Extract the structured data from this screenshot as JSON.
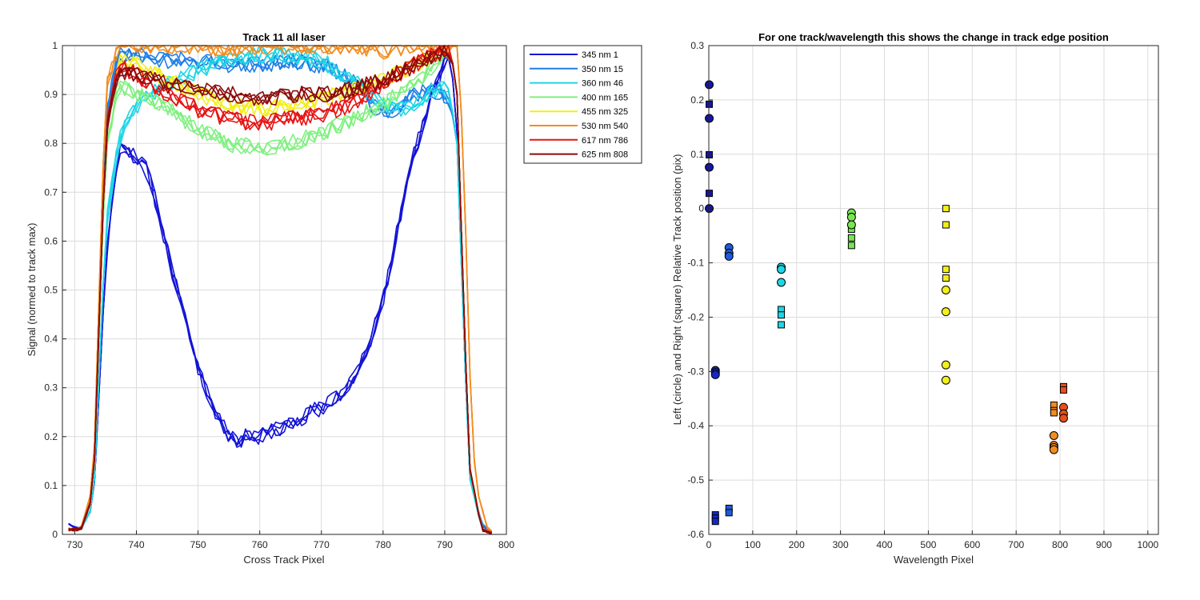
{
  "chart_data": [
    {
      "type": "line",
      "title": "Track 11  all laser",
      "xlabel": "Cross Track Pixel",
      "ylabel": "Signal (normed to track max)",
      "xlim": [
        728,
        800
      ],
      "ylim": [
        0,
        1
      ],
      "xticks": [
        "730",
        "740",
        "750",
        "760",
        "770",
        "780",
        "790",
        "800"
      ],
      "yticks": [
        "0",
        "0.1",
        "0.2",
        "0.3",
        "0.4",
        "0.5",
        "0.6",
        "0.7",
        "0.8",
        "0.9",
        "1"
      ],
      "grid": true,
      "legend_position": "outside-right",
      "series": [
        {
          "name": "345 nm 1",
          "color": "#1414d6",
          "profile": [
            [
              729,
              0.02
            ],
            [
              731,
              0.01
            ],
            [
              733,
              0.06
            ],
            [
              735,
              0.55
            ],
            [
              737,
              0.78
            ],
            [
              738,
              0.8
            ],
            [
              740,
              0.77
            ],
            [
              742,
              0.74
            ],
            [
              744,
              0.63
            ],
            [
              746,
              0.53
            ],
            [
              748,
              0.43
            ],
            [
              750,
              0.34
            ],
            [
              752,
              0.27
            ],
            [
              754,
              0.22
            ],
            [
              756,
              0.19
            ],
            [
              758,
              0.2
            ],
            [
              760,
              0.2
            ],
            [
              762,
              0.21
            ],
            [
              764,
              0.22
            ],
            [
              766,
              0.23
            ],
            [
              768,
              0.25
            ],
            [
              770,
              0.26
            ],
            [
              772,
              0.28
            ],
            [
              774,
              0.3
            ],
            [
              776,
              0.34
            ],
            [
              778,
              0.4
            ],
            [
              780,
              0.48
            ],
            [
              782,
              0.6
            ],
            [
              784,
              0.73
            ],
            [
              786,
              0.82
            ],
            [
              788,
              0.9
            ],
            [
              790,
              0.97
            ],
            [
              791,
              0.98
            ],
            [
              792,
              0.82
            ],
            [
              793,
              0.45
            ],
            [
              794,
              0.12
            ],
            [
              796,
              0.02
            ],
            [
              798,
              0.0
            ]
          ]
        },
        {
          "name": "350 nm 15",
          "color": "#1f7fe6",
          "profile": [
            [
              729,
              0.01
            ],
            [
              731,
              0.01
            ],
            [
              733,
              0.08
            ],
            [
              735,
              0.85
            ],
            [
              737,
              0.98
            ],
            [
              740,
              0.98
            ],
            [
              745,
              0.97
            ],
            [
              750,
              0.97
            ],
            [
              755,
              0.96
            ],
            [
              760,
              0.96
            ],
            [
              765,
              0.97
            ],
            [
              770,
              0.96
            ],
            [
              775,
              0.93
            ],
            [
              778,
              0.88
            ],
            [
              780,
              0.86
            ],
            [
              782,
              0.87
            ],
            [
              785,
              0.9
            ],
            [
              788,
              0.91
            ],
            [
              790,
              0.9
            ],
            [
              791,
              0.88
            ],
            [
              792,
              0.8
            ],
            [
              793,
              0.45
            ],
            [
              794,
              0.12
            ],
            [
              796,
              0.02
            ],
            [
              798,
              0.0
            ]
          ]
        },
        {
          "name": "360 nm 46",
          "color": "#1ed6e6",
          "profile": [
            [
              729,
              0.01
            ],
            [
              731,
              0.01
            ],
            [
              733,
              0.06
            ],
            [
              735,
              0.62
            ],
            [
              737,
              0.8
            ],
            [
              739,
              0.86
            ],
            [
              741,
              0.89
            ],
            [
              745,
              0.92
            ],
            [
              750,
              0.95
            ],
            [
              755,
              0.97
            ],
            [
              760,
              0.98
            ],
            [
              765,
              0.98
            ],
            [
              770,
              0.97
            ],
            [
              775,
              0.93
            ],
            [
              778,
              0.9
            ],
            [
              780,
              0.88
            ],
            [
              783,
              0.87
            ],
            [
              786,
              0.89
            ],
            [
              788,
              0.91
            ],
            [
              790,
              0.91
            ],
            [
              791,
              0.89
            ],
            [
              792,
              0.8
            ],
            [
              793,
              0.45
            ],
            [
              794,
              0.12
            ],
            [
              796,
              0.01
            ],
            [
              798,
              0.0
            ]
          ]
        },
        {
          "name": "400 nm 165",
          "color": "#80f080",
          "profile": [
            [
              729,
              0.01
            ],
            [
              731,
              0.01
            ],
            [
              733,
              0.08
            ],
            [
              735,
              0.78
            ],
            [
              737,
              0.92
            ],
            [
              740,
              0.9
            ],
            [
              745,
              0.87
            ],
            [
              750,
              0.83
            ],
            [
              755,
              0.8
            ],
            [
              760,
              0.79
            ],
            [
              765,
              0.8
            ],
            [
              770,
              0.82
            ],
            [
              775,
              0.85
            ],
            [
              780,
              0.88
            ],
            [
              785,
              0.92
            ],
            [
              788,
              0.96
            ],
            [
              790,
              0.99
            ],
            [
              791,
              0.99
            ],
            [
              792,
              0.9
            ],
            [
              793,
              0.5
            ],
            [
              794,
              0.14
            ],
            [
              796,
              0.01
            ],
            [
              798,
              0.0
            ]
          ]
        },
        {
          "name": "455 nm 325",
          "color": "#f2ef1a",
          "profile": [
            [
              729,
              0.01
            ],
            [
              731,
              0.01
            ],
            [
              733,
              0.08
            ],
            [
              735,
              0.82
            ],
            [
              737,
              0.97
            ],
            [
              740,
              0.96
            ],
            [
              745,
              0.93
            ],
            [
              750,
              0.9
            ],
            [
              755,
              0.88
            ],
            [
              760,
              0.87
            ],
            [
              765,
              0.88
            ],
            [
              770,
              0.89
            ],
            [
              775,
              0.91
            ],
            [
              780,
              0.93
            ],
            [
              785,
              0.96
            ],
            [
              788,
              0.98
            ],
            [
              790,
              0.99
            ],
            [
              791,
              0.99
            ],
            [
              792,
              0.9
            ],
            [
              793,
              0.5
            ],
            [
              794,
              0.14
            ],
            [
              796,
              0.01
            ],
            [
              798,
              0.0
            ]
          ]
        },
        {
          "name": "530 nm 540",
          "color": "#f28c1e",
          "profile": [
            [
              729,
              0.01
            ],
            [
              731,
              0.01
            ],
            [
              733,
              0.1
            ],
            [
              735,
              0.92
            ],
            [
              737,
              1.0
            ],
            [
              740,
              1.0
            ],
            [
              745,
              1.0
            ],
            [
              750,
              1.0
            ],
            [
              755,
              0.99
            ],
            [
              760,
              1.0
            ],
            [
              765,
              1.0
            ],
            [
              770,
              1.0
            ],
            [
              775,
              1.0
            ],
            [
              780,
              0.99
            ],
            [
              785,
              1.0
            ],
            [
              788,
              1.0
            ],
            [
              790,
              1.0
            ],
            [
              792,
              1.0
            ],
            [
              793,
              0.8
            ],
            [
              794,
              0.35
            ],
            [
              795,
              0.1
            ],
            [
              797,
              0.01
            ],
            [
              798,
              0.0
            ]
          ]
        },
        {
          "name": "617 nm 786",
          "color": "#e61414",
          "profile": [
            [
              729,
              0.01
            ],
            [
              731,
              0.01
            ],
            [
              733,
              0.08
            ],
            [
              735,
              0.82
            ],
            [
              737,
              0.96
            ],
            [
              740,
              0.94
            ],
            [
              745,
              0.9
            ],
            [
              750,
              0.87
            ],
            [
              755,
              0.85
            ],
            [
              760,
              0.84
            ],
            [
              765,
              0.85
            ],
            [
              770,
              0.86
            ],
            [
              775,
              0.88
            ],
            [
              780,
              0.92
            ],
            [
              785,
              0.96
            ],
            [
              788,
              0.98
            ],
            [
              790,
              0.99
            ],
            [
              791,
              0.99
            ],
            [
              792,
              0.9
            ],
            [
              793,
              0.5
            ],
            [
              794,
              0.14
            ],
            [
              796,
              0.01
            ],
            [
              798,
              0.0
            ]
          ]
        },
        {
          "name": "625 nm 808",
          "color": "#8c0a0a",
          "profile": [
            [
              729,
              0.01
            ],
            [
              731,
              0.01
            ],
            [
              733,
              0.08
            ],
            [
              735,
              0.82
            ],
            [
              737,
              0.95
            ],
            [
              740,
              0.94
            ],
            [
              745,
              0.92
            ],
            [
              750,
              0.91
            ],
            [
              755,
              0.9
            ],
            [
              760,
              0.89
            ],
            [
              765,
              0.9
            ],
            [
              770,
              0.9
            ],
            [
              775,
              0.91
            ],
            [
              780,
              0.93
            ],
            [
              785,
              0.96
            ],
            [
              788,
              0.98
            ],
            [
              790,
              0.99
            ],
            [
              791,
              0.99
            ],
            [
              792,
              0.9
            ],
            [
              793,
              0.5
            ],
            [
              794,
              0.14
            ],
            [
              796,
              0.01
            ],
            [
              798,
              0.0
            ]
          ]
        }
      ]
    },
    {
      "type": "scatter",
      "title": "For one track/wavelength this shows the change in track edge position",
      "xlabel": "Wavelength Pixel",
      "ylabel": "Left (circle) and Right (square) Relative Track position (pix)",
      "xlim": [
        0,
        1024
      ],
      "ylim": [
        -0.6,
        0.3
      ],
      "xticks": [
        "0",
        "100",
        "200",
        "300",
        "400",
        "500",
        "600",
        "700",
        "800",
        "900",
        "1000"
      ],
      "yticks": [
        "-0.6",
        "-0.5",
        "-0.4",
        "-0.3",
        "-0.2",
        "-0.1",
        "0",
        "0.1",
        "0.2",
        "0.3"
      ],
      "grid": true,
      "marker_legend": {
        "circle": "Left",
        "square": "Right"
      },
      "groups": [
        {
          "x": 1,
          "color": "#1414b4",
          "circles": [
            0.228,
            0.166,
            0.076,
            0.0
          ],
          "squares": [
            0.192,
            0.099,
            0.028
          ]
        },
        {
          "x": 15,
          "color": "#1428c8",
          "circles": [
            -0.298,
            -0.302,
            -0.306
          ],
          "squares": [
            -0.564,
            -0.57,
            -0.576
          ]
        },
        {
          "x": 46,
          "color": "#1e5adc",
          "circles": [
            -0.072,
            -0.082,
            -0.088
          ],
          "squares": [
            -0.552,
            -0.56
          ]
        },
        {
          "x": 165,
          "color": "#1ed6e6",
          "circles": [
            -0.108,
            -0.112,
            -0.136
          ],
          "squares": [
            -0.186,
            -0.196,
            -0.214
          ]
        },
        {
          "x": 325,
          "color": "#78e650",
          "circles": [
            -0.008,
            -0.016,
            -0.03
          ],
          "squares": [
            -0.038,
            -0.054,
            -0.068
          ]
        },
        {
          "x": 540,
          "color": "#f2ef1a",
          "circles": [
            -0.15,
            -0.19,
            -0.288,
            -0.316
          ],
          "squares": [
            0.0,
            -0.03,
            -0.112,
            -0.128
          ]
        },
        {
          "x": 786,
          "color": "#f28c1e",
          "circles": [
            -0.418,
            -0.436,
            -0.44,
            -0.444
          ],
          "squares": [
            -0.362,
            -0.372,
            -0.376
          ]
        },
        {
          "x": 808,
          "color": "#e6501e",
          "circles": [
            -0.366,
            -0.378,
            -0.386
          ],
          "squares": [
            -0.328,
            -0.334
          ]
        }
      ]
    }
  ]
}
